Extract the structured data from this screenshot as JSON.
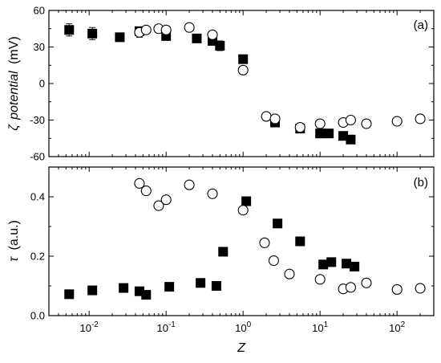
{
  "chart_data": [
    {
      "type": "scatter",
      "panel_label": "(a)",
      "xlabel": "Z",
      "ylabel": "ζ potential (mV)",
      "ylabel_parts": [
        "ζ",
        "potential",
        "(mV)"
      ],
      "x_scale": "log",
      "xlim": [
        0.003,
        300
      ],
      "ylim": [
        -60,
        60
      ],
      "yticks": [
        -60,
        -30,
        0,
        30,
        60
      ],
      "ytick_labels": [
        "-60",
        "-30",
        "0",
        "30",
        "60"
      ],
      "series": [
        {
          "marker": "filled-square",
          "points": [
            {
              "x": 0.0055,
              "y": 44,
              "err": 5
            },
            {
              "x": 0.011,
              "y": 41,
              "err": 5
            },
            {
              "x": 0.025,
              "y": 38,
              "err": 0
            },
            {
              "x": 0.045,
              "y": 43,
              "err": 3
            },
            {
              "x": 0.1,
              "y": 39,
              "err": 2
            },
            {
              "x": 0.25,
              "y": 37,
              "err": 0
            },
            {
              "x": 0.4,
              "y": 35,
              "err": 2
            },
            {
              "x": 0.5,
              "y": 31,
              "err": 4
            },
            {
              "x": 1.0,
              "y": 20,
              "err": 0
            },
            {
              "x": 2.6,
              "y": -32,
              "err": 0
            },
            {
              "x": 5.5,
              "y": -37,
              "err": 2
            },
            {
              "x": 10,
              "y": -41,
              "err": 0
            },
            {
              "x": 13,
              "y": -41,
              "err": 0
            },
            {
              "x": 20,
              "y": -43,
              "err": 0
            },
            {
              "x": 25,
              "y": -46,
              "err": 0
            }
          ]
        },
        {
          "marker": "open-circle",
          "points": [
            {
              "x": 0.045,
              "y": 42,
              "err": 4
            },
            {
              "x": 0.055,
              "y": 44,
              "err": 3
            },
            {
              "x": 0.08,
              "y": 45,
              "err": 2
            },
            {
              "x": 0.1,
              "y": 44,
              "err": 3
            },
            {
              "x": 0.2,
              "y": 46,
              "err": 0
            },
            {
              "x": 0.4,
              "y": 40,
              "err": 3
            },
            {
              "x": 1.0,
              "y": 11,
              "err": 0
            },
            {
              "x": 2.0,
              "y": -27,
              "err": 0
            },
            {
              "x": 2.6,
              "y": -29,
              "err": 3
            },
            {
              "x": 5.5,
              "y": -36,
              "err": 0
            },
            {
              "x": 10,
              "y": -33,
              "err": 0
            },
            {
              "x": 20,
              "y": -32,
              "err": 0
            },
            {
              "x": 25,
              "y": -30,
              "err": 0
            },
            {
              "x": 40,
              "y": -33,
              "err": 0
            },
            {
              "x": 100,
              "y": -31,
              "err": 0
            },
            {
              "x": 200,
              "y": -29,
              "err": 0
            }
          ]
        }
      ]
    },
    {
      "type": "scatter",
      "panel_label": "(b)",
      "xlabel": "Z",
      "ylabel": "τ (a.u.)",
      "ylabel_parts": [
        "τ",
        "(a.u.)"
      ],
      "x_scale": "log",
      "xlim": [
        0.003,
        300
      ],
      "ylim": [
        0.0,
        0.5
      ],
      "yticks": [
        0.0,
        0.2,
        0.4
      ],
      "ytick_labels": [
        "0.0",
        "0.2",
        "0.4"
      ],
      "xticks": [
        0.01,
        0.1,
        1,
        10,
        100
      ],
      "xtick_labels": [
        {
          "base": "10",
          "exp": "-2"
        },
        {
          "base": "10",
          "exp": "-1"
        },
        {
          "base": "10",
          "exp": "0"
        },
        {
          "base": "10",
          "exp": "1"
        },
        {
          "base": "10",
          "exp": "2"
        }
      ],
      "series": [
        {
          "marker": "filled-square",
          "points": [
            {
              "x": 0.0055,
              "y": 0.072
            },
            {
              "x": 0.011,
              "y": 0.085
            },
            {
              "x": 0.028,
              "y": 0.093
            },
            {
              "x": 0.045,
              "y": 0.082
            },
            {
              "x": 0.055,
              "y": 0.07
            },
            {
              "x": 0.11,
              "y": 0.097
            },
            {
              "x": 0.28,
              "y": 0.11
            },
            {
              "x": 0.45,
              "y": 0.1
            },
            {
              "x": 0.55,
              "y": 0.215
            },
            {
              "x": 1.1,
              "y": 0.385
            },
            {
              "x": 2.8,
              "y": 0.31
            },
            {
              "x": 5.5,
              "y": 0.25
            },
            {
              "x": 11,
              "y": 0.172
            },
            {
              "x": 14,
              "y": 0.18
            },
            {
              "x": 22,
              "y": 0.175
            },
            {
              "x": 28,
              "y": 0.165
            }
          ]
        },
        {
          "marker": "open-circle",
          "points": [
            {
              "x": 0.045,
              "y": 0.445
            },
            {
              "x": 0.055,
              "y": 0.42
            },
            {
              "x": 0.08,
              "y": 0.37
            },
            {
              "x": 0.1,
              "y": 0.39
            },
            {
              "x": 0.2,
              "y": 0.44
            },
            {
              "x": 0.4,
              "y": 0.41
            },
            {
              "x": 1.0,
              "y": 0.355
            },
            {
              "x": 1.9,
              "y": 0.245
            },
            {
              "x": 2.5,
              "y": 0.185
            },
            {
              "x": 4.0,
              "y": 0.14
            },
            {
              "x": 10,
              "y": 0.122
            },
            {
              "x": 20,
              "y": 0.09
            },
            {
              "x": 25,
              "y": 0.095
            },
            {
              "x": 40,
              "y": 0.11
            },
            {
              "x": 100,
              "y": 0.088
            },
            {
              "x": 200,
              "y": 0.092
            }
          ]
        }
      ]
    }
  ]
}
